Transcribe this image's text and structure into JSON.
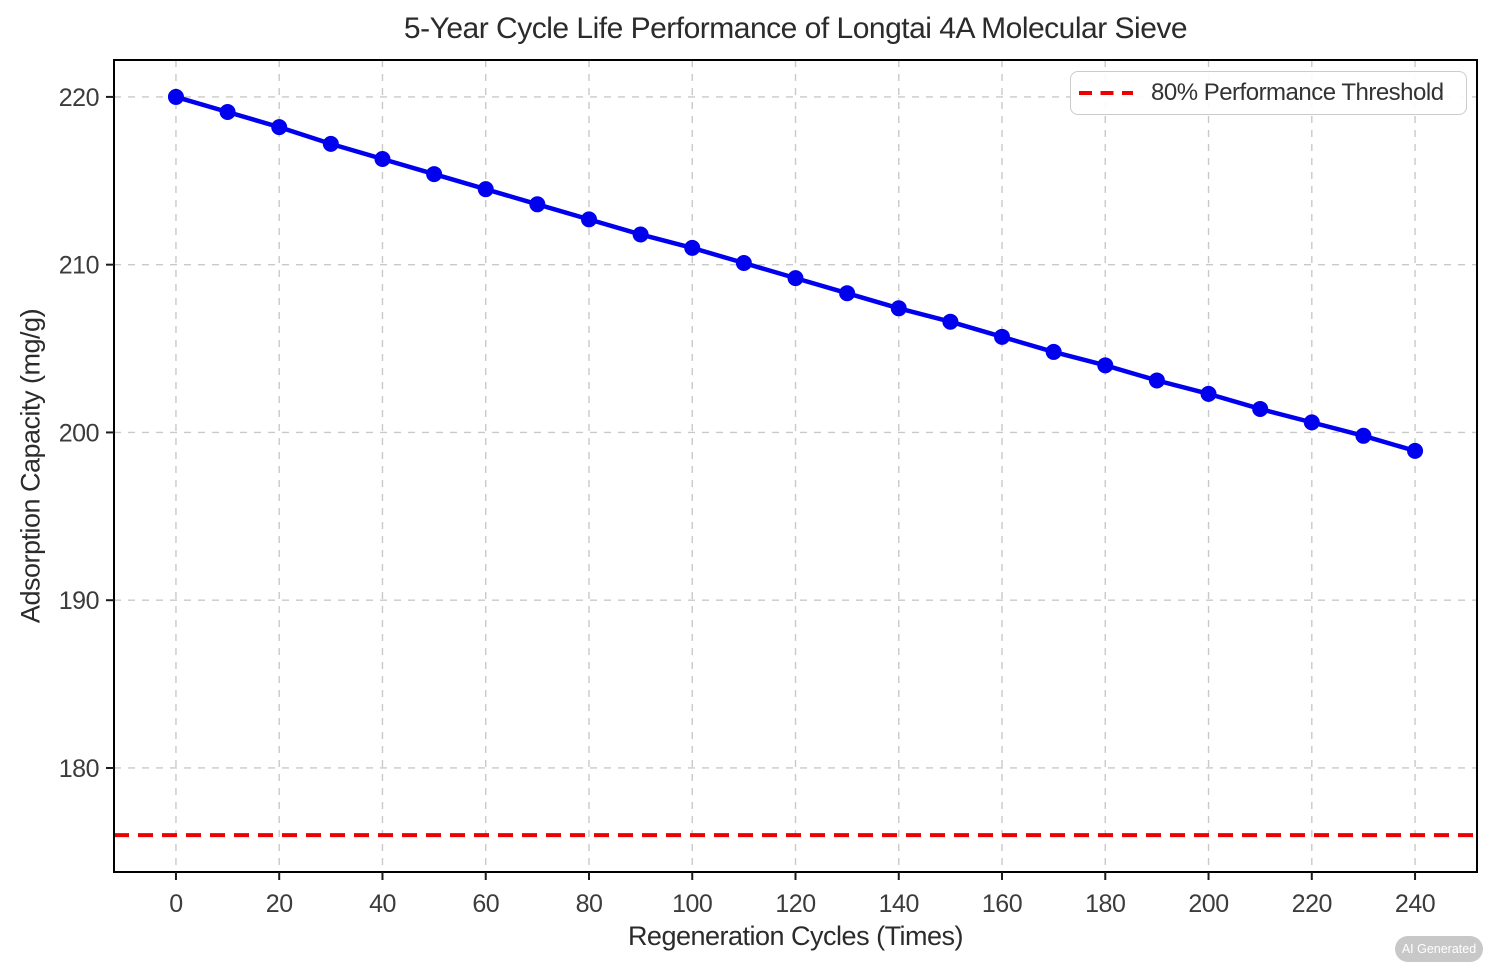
{
  "figure": {
    "badge": "AI Generated"
  },
  "chart_data": {
    "type": "line",
    "title": "5-Year Cycle Life Performance of Longtai 4A Molecular Sieve",
    "xlabel": "Regeneration Cycles (Times)",
    "ylabel": "Adsorption Capacity (mg/g)",
    "x": [
      0,
      10,
      20,
      30,
      40,
      50,
      60,
      70,
      80,
      90,
      100,
      110,
      120,
      130,
      140,
      150,
      160,
      170,
      180,
      190,
      200,
      210,
      220,
      230,
      240
    ],
    "series": [
      {
        "name": "Adsorption Capacity",
        "color": "#0000ee",
        "marker": "circle",
        "values": [
          220.0,
          219.1,
          218.2,
          217.2,
          216.3,
          215.4,
          214.5,
          213.6,
          212.7,
          211.8,
          211.0,
          210.1,
          209.2,
          208.3,
          207.4,
          206.6,
          205.7,
          204.8,
          204.0,
          203.1,
          202.3,
          201.4,
          200.6,
          199.8,
          198.9
        ]
      }
    ],
    "threshold": {
      "label": "80% Performance Threshold",
      "value": 176,
      "color": "#ee0000",
      "style": "dashed"
    },
    "x_ticks": [
      0,
      20,
      40,
      60,
      80,
      100,
      120,
      140,
      160,
      180,
      200,
      220,
      240
    ],
    "y_ticks": [
      180,
      190,
      200,
      210,
      220
    ],
    "xlim": [
      -12,
      252
    ],
    "ylim": [
      173.8,
      222.2
    ],
    "grid": true,
    "legend_position": "upper right"
  }
}
